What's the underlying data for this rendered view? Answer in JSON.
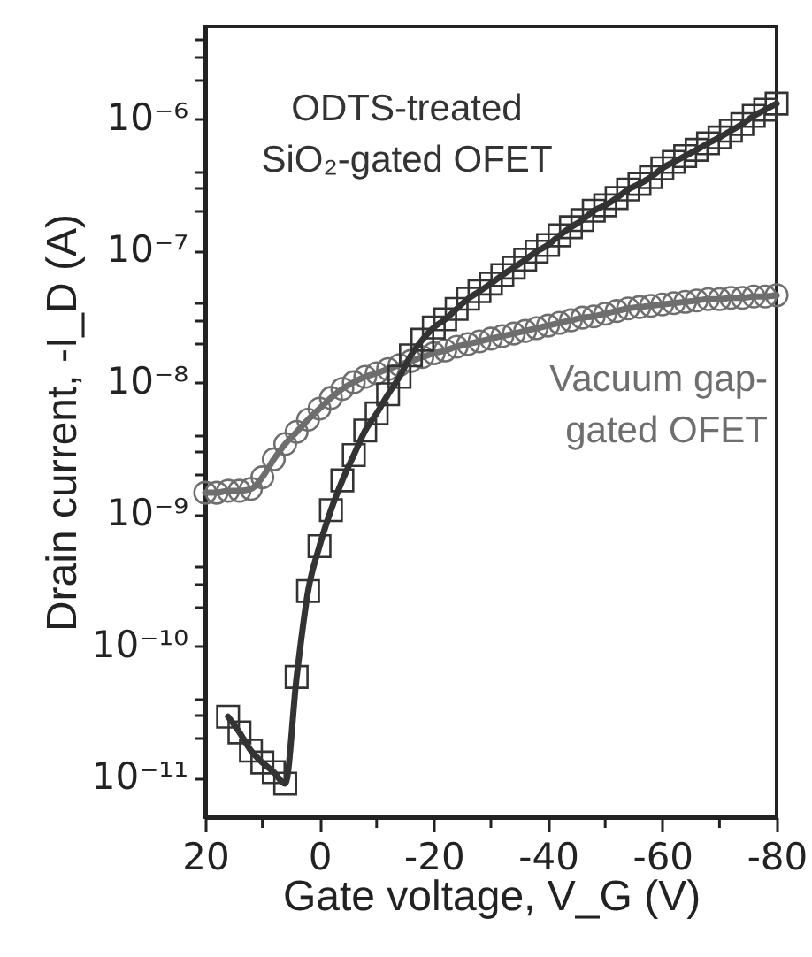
{
  "chart_data": {
    "type": "line",
    "xlabel": "Gate voltage, V_G (V)",
    "ylabel": "Drain current, -I_D (A)",
    "log": "y",
    "grid": false,
    "line_style": "solid",
    "xlim": [
      20,
      -80
    ],
    "xticks": [
      20,
      {
        "value": 10,
        "label": null
      },
      0,
      {
        "value": -10,
        "label": null
      },
      -20,
      {
        "value": -30,
        "label": null
      },
      -40,
      {
        "value": -50,
        "label": null
      },
      -60,
      {
        "value": -70,
        "label": null
      },
      -80
    ],
    "ylim": [
      5e-12,
      5e-06
    ],
    "yticks": [
      {
        "value": 1e-11,
        "label": "10⁻¹¹"
      },
      {
        "value": 2e-11,
        "label": null
      },
      {
        "value": 3e-11,
        "label": null
      },
      {
        "value": 4e-11,
        "label": null
      },
      {
        "value": 1e-10,
        "label": "10⁻¹⁰"
      },
      {
        "value": 2e-10,
        "label": null
      },
      {
        "value": 3e-10,
        "label": null
      },
      {
        "value": 4e-10,
        "label": null
      },
      {
        "value": 1e-09,
        "label": "10⁻⁹"
      },
      {
        "value": 2e-09,
        "label": null
      },
      {
        "value": 3e-09,
        "label": null
      },
      {
        "value": 4e-09,
        "label": null
      },
      {
        "value": 1e-08,
        "label": "10⁻⁸"
      },
      {
        "value": 2e-08,
        "label": null
      },
      {
        "value": 3e-08,
        "label": null
      },
      {
        "value": 4e-08,
        "label": null
      },
      {
        "value": 1e-07,
        "label": "10⁻⁷"
      },
      {
        "value": 2e-07,
        "label": null
      },
      {
        "value": 3e-07,
        "label": null
      },
      {
        "value": 4e-07,
        "label": null
      },
      {
        "value": 1e-06,
        "label": "10⁻⁶"
      },
      {
        "value": 2e-06,
        "label": null
      },
      {
        "value": 3e-06,
        "label": null
      },
      {
        "value": 4e-06,
        "label": null
      }
    ],
    "series": [
      {
        "name": "ODTS-treated\nSiO₂-gated OFET",
        "color": "#333333",
        "marker": "square",
        "x": [
          16,
          14,
          12,
          10,
          8,
          6,
          4,
          2,
          0,
          -2,
          -4,
          -6,
          -8,
          -10,
          -12,
          -14,
          -16,
          -18,
          -20,
          -22,
          -24,
          -26,
          -28,
          -30,
          -32,
          -34,
          -36,
          -38,
          -40,
          -42,
          -44,
          -46,
          -48,
          -50,
          -52,
          -54,
          -56,
          -58,
          -60,
          -62,
          -64,
          -66,
          -68,
          -70,
          -72,
          -74,
          -76,
          -78,
          -80
        ],
        "values": [
          2.9e-11,
          2.2e-11,
          1.6e-11,
          1.3e-11,
          1.1e-11,
          9e-12,
          5.8e-11,
          2.6e-10,
          5.7e-10,
          1.07e-09,
          1.8e-09,
          2.8e-09,
          4.3e-09,
          5.8e-09,
          8.1e-09,
          1.1e-08,
          1.6e-08,
          2.1e-08,
          2.6e-08,
          3e-08,
          3.6e-08,
          4.3e-08,
          4.9e-08,
          5.6e-08,
          6.5e-08,
          7.4e-08,
          8.5e-08,
          9.8e-08,
          1.1e-07,
          1.3e-07,
          1.5e-07,
          1.7e-07,
          2e-07,
          2.2e-07,
          2.5e-07,
          2.9e-07,
          3.2e-07,
          3.6e-07,
          4.2e-07,
          4.7e-07,
          5.2e-07,
          5.8e-07,
          6.5e-07,
          7.2e-07,
          8.1e-07,
          9.1e-07,
          1.05e-06,
          1.17e-06,
          1.3e-06
        ]
      },
      {
        "name": "Vacuum gap-\ngated OFET",
        "color": "#6e6e6e",
        "marker": "circle",
        "x": [
          20,
          18,
          16,
          14,
          12,
          10,
          8,
          6,
          4,
          2,
          0,
          -2,
          -4,
          -6,
          -8,
          -10,
          -12,
          -14,
          -16,
          -18,
          -20,
          -22,
          -24,
          -26,
          -28,
          -30,
          -32,
          -34,
          -36,
          -38,
          -40,
          -42,
          -44,
          -46,
          -48,
          -50,
          -52,
          -54,
          -56,
          -58,
          -60,
          -62,
          -64,
          -66,
          -68,
          -70,
          -72,
          -74,
          -76,
          -78,
          -80
        ],
        "values": [
          1.45e-09,
          1.45e-09,
          1.5e-09,
          1.5e-09,
          1.55e-09,
          1.9e-09,
          2.6e-09,
          3.4e-09,
          4.2e-09,
          5.2e-09,
          6.3e-09,
          7.6e-09,
          8.9e-09,
          1e-08,
          1.1e-08,
          1.17e-08,
          1.26e-08,
          1.35e-08,
          1.45e-08,
          1.55e-08,
          1.66e-08,
          1.74e-08,
          1.86e-08,
          1.95e-08,
          2.04e-08,
          2.14e-08,
          2.24e-08,
          2.34e-08,
          2.45e-08,
          2.57e-08,
          2.69e-08,
          2.82e-08,
          2.95e-08,
          3.09e-08,
          3.16e-08,
          3.31e-08,
          3.47e-08,
          3.63e-08,
          3.72e-08,
          3.8e-08,
          3.89e-08,
          3.98e-08,
          4.07e-08,
          4.17e-08,
          4.27e-08,
          4.27e-08,
          4.37e-08,
          4.37e-08,
          4.47e-08,
          4.47e-08,
          4.57e-08
        ]
      }
    ]
  }
}
